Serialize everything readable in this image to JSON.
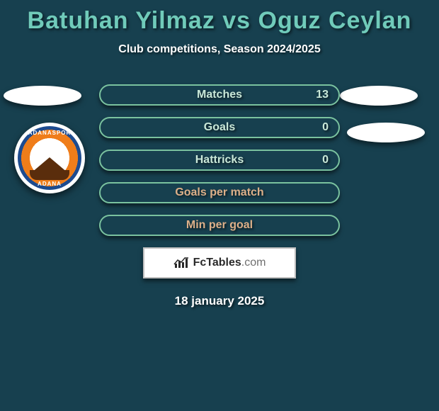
{
  "title": "Batuhan Yilmaz vs Oguz Ceylan",
  "subtitle": "Club competitions, Season 2024/2025",
  "date": "18 january 2025",
  "branding": {
    "name": "FcTables",
    "suffix": ".com"
  },
  "colors": {
    "background": "#17404f",
    "title_color": "#70cbba",
    "bar_border": "#7ac29f",
    "bar_text": "#c9e8d8",
    "bar_text_empty": "#ddb089"
  },
  "logo": {
    "top_text": "ADANASPOR",
    "bottom_text": "ADANA"
  },
  "stats": [
    {
      "label": "Matches",
      "value": "13",
      "has_value": true
    },
    {
      "label": "Goals",
      "value": "0",
      "has_value": true
    },
    {
      "label": "Hattricks",
      "value": "0",
      "has_value": true
    },
    {
      "label": "Goals per match",
      "value": "",
      "has_value": false
    },
    {
      "label": "Min per goal",
      "value": "",
      "has_value": false
    }
  ]
}
